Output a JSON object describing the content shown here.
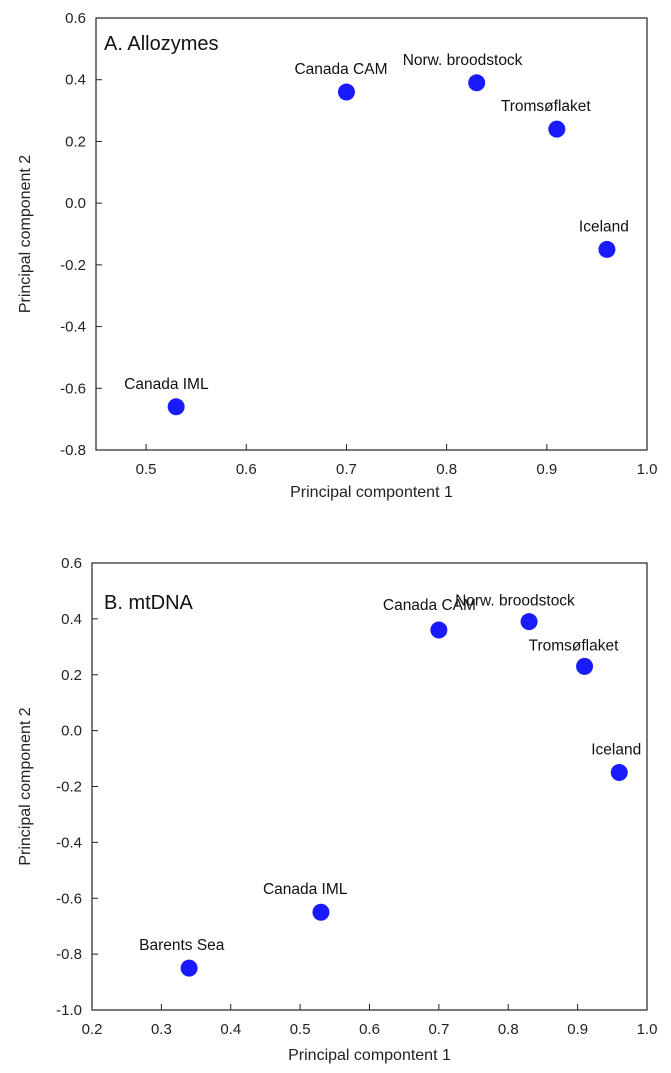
{
  "chart_data": [
    {
      "type": "scatter",
      "title": "A. Allozymes",
      "xlabel": "Principal compontent 1",
      "ylabel": "Principal component 2",
      "xlim": [
        0.45,
        1.0
      ],
      "ylim": [
        -0.8,
        0.6
      ],
      "xticks": [
        "0.5",
        "0.6",
        "0.7",
        "0.8",
        "0.9",
        "1.0"
      ],
      "yticks": [
        "0.6",
        "0.4",
        "0.2",
        "0.0",
        "-0.2",
        "-0.4",
        "-0.6",
        "-0.8"
      ],
      "grid": false,
      "marker_color": "#1a1aff",
      "points": [
        {
          "label": "Canada CAM",
          "x": 0.7,
          "y": 0.36
        },
        {
          "label": "Norw. broodstock",
          "x": 0.83,
          "y": 0.39
        },
        {
          "label": "Tromsøflaket",
          "x": 0.91,
          "y": 0.24
        },
        {
          "label": "Iceland",
          "x": 0.96,
          "y": -0.15
        },
        {
          "label": "Canada IML",
          "x": 0.53,
          "y": -0.66
        }
      ]
    },
    {
      "type": "scatter",
      "title": "B. mtDNA",
      "xlabel": "Principal compontent 1",
      "ylabel": "Principal component 2",
      "xlim": [
        0.2,
        1.0
      ],
      "ylim": [
        -1.0,
        0.6
      ],
      "xticks": [
        "0.2",
        "0.3",
        "0.4",
        "0.5",
        "0.6",
        "0.7",
        "0.8",
        "0.9",
        "1.0"
      ],
      "yticks": [
        "0.6",
        "0.4",
        "0.2",
        "0.0",
        "-0.2",
        "-0.4",
        "-0.6",
        "-0.8",
        "-1.0"
      ],
      "grid": false,
      "marker_color": "#1a1aff",
      "points": [
        {
          "label": "Canada CAM",
          "x": 0.7,
          "y": 0.36
        },
        {
          "label": "Norw. broodstock",
          "x": 0.83,
          "y": 0.39
        },
        {
          "label": "Tromsøflaket",
          "x": 0.91,
          "y": 0.23
        },
        {
          "label": "Iceland",
          "x": 0.96,
          "y": -0.15
        },
        {
          "label": "Canada IML",
          "x": 0.53,
          "y": -0.65
        },
        {
          "label": "Barents Sea",
          "x": 0.34,
          "y": -0.85
        }
      ]
    }
  ]
}
